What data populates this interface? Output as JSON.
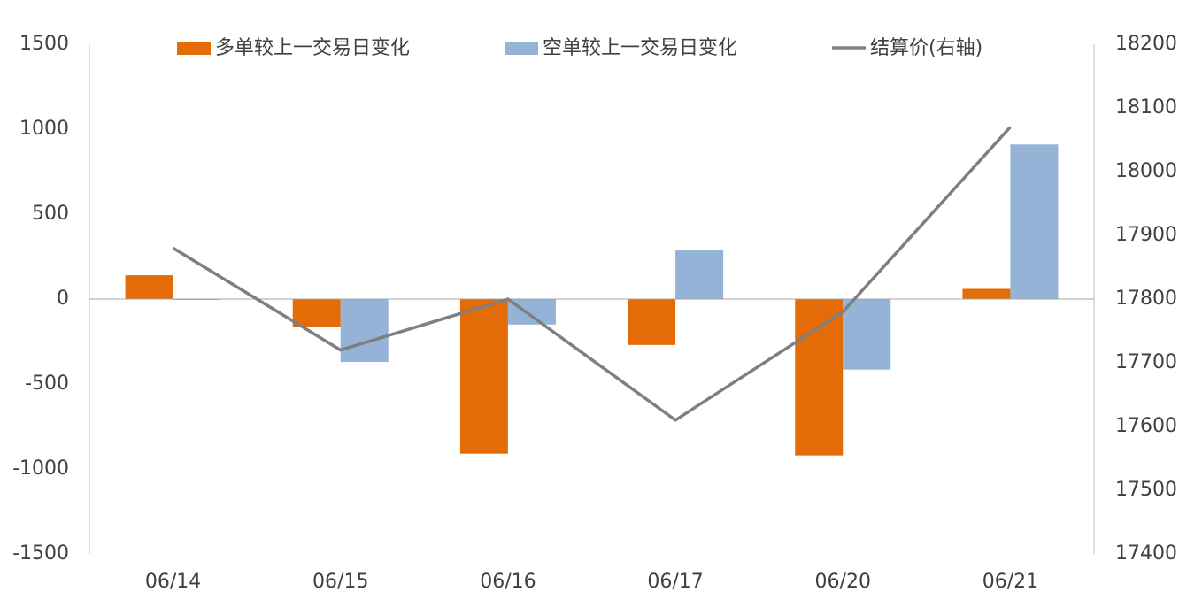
{
  "chart_data": {
    "type": "bar",
    "categories": [
      "06/14",
      "06/15",
      "06/16",
      "06/17",
      "06/20",
      "06/21"
    ],
    "series": [
      {
        "name": "多单较上一交易日变化",
        "color": "#e36c09",
        "type": "bar",
        "values": [
          140,
          -165,
          -910,
          -270,
          -920,
          60
        ]
      },
      {
        "name": "空单较上一交易日变化",
        "color": "#95b3d7",
        "type": "bar",
        "values": [
          -5,
          -370,
          -150,
          290,
          -415,
          910
        ]
      },
      {
        "name": "结算价(右轴)",
        "color": "#7f7f7f",
        "type": "line",
        "axis": "y2",
        "values": [
          17880,
          17720,
          17800,
          17610,
          17780,
          18070
        ]
      }
    ],
    "ylim": [
      -1500,
      1500
    ],
    "yticks": [
      -1500,
      -1000,
      -500,
      0,
      500,
      1000,
      1500
    ],
    "y2lim": [
      17400,
      18200
    ],
    "y2ticks": [
      17400,
      17500,
      17600,
      17700,
      17800,
      17900,
      18000,
      18100,
      18200
    ],
    "grid": false,
    "legend": "top"
  }
}
